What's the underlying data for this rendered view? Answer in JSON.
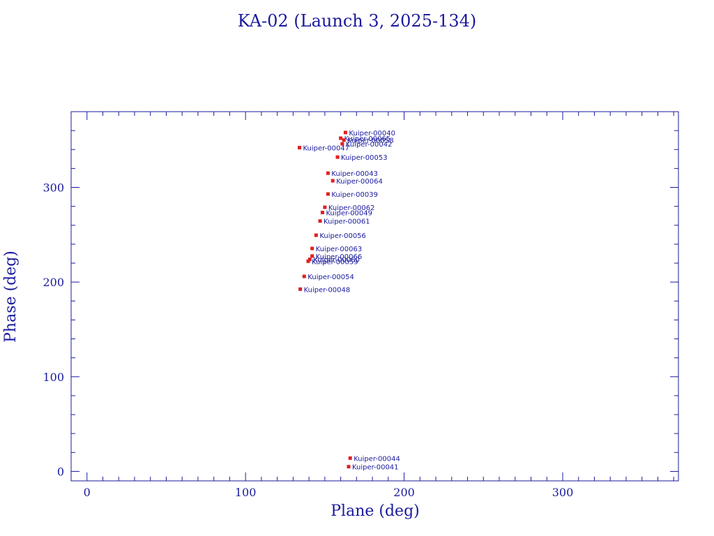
{
  "chart_data": {
    "type": "scatter",
    "title": "KA-02 (Launch 3, 2025-134)",
    "xlabel": "Plane (deg)",
    "ylabel": "Phase (deg)",
    "xlim": [
      -10,
      373
    ],
    "ylim": [
      -10,
      380
    ],
    "x_ticks": [
      0,
      100,
      200,
      300
    ],
    "y_ticks": [
      0,
      100,
      200,
      300
    ],
    "x_minor_step": 10,
    "y_minor_step": 20,
    "grid": false,
    "marker_color": "#e02020",
    "axis_color": "#1a1a9e",
    "points": [
      {
        "label": "Kuiper-00040",
        "x": 163.0,
        "y": 358.0
      },
      {
        "label": "Kuiper-00065",
        "x": 160.0,
        "y": 352.0
      },
      {
        "label": "Kuiper-00058",
        "x": 162.0,
        "y": 350.0
      },
      {
        "label": "Kuiper-00042",
        "x": 161.0,
        "y": 346.0
      },
      {
        "label": "Kuiper-00047",
        "x": 134.0,
        "y": 342.0
      },
      {
        "label": "Kuiper-00053",
        "x": 158.0,
        "y": 332.0
      },
      {
        "label": "Kuiper-00043",
        "x": 152.0,
        "y": 315.0
      },
      {
        "label": "Kuiper-00064",
        "x": 155.0,
        "y": 307.0
      },
      {
        "label": "Kuiper-00039",
        "x": 152.0,
        "y": 293.0
      },
      {
        "label": "Kuiper-00062",
        "x": 150.0,
        "y": 279.0
      },
      {
        "label": "Kuiper-00049",
        "x": 148.5,
        "y": 273.5
      },
      {
        "label": "Kuiper-00061",
        "x": 147.0,
        "y": 264.5
      },
      {
        "label": "Kuiper-00056",
        "x": 144.5,
        "y": 249.5
      },
      {
        "label": "Kuiper-00063",
        "x": 142.0,
        "y": 235.5
      },
      {
        "label": "Kuiper-00066",
        "x": 142.0,
        "y": 227.5
      },
      {
        "label": "Kuiper-00060",
        "x": 140.5,
        "y": 224.0
      },
      {
        "label": "Kuiper-00059",
        "x": 139.5,
        "y": 222.0
      },
      {
        "label": "Kuiper-00054",
        "x": 137.0,
        "y": 206.0
      },
      {
        "label": "Kuiper-00048",
        "x": 134.5,
        "y": 192.5
      },
      {
        "label": "Kuiper-00044",
        "x": 166.0,
        "y": 14.0
      },
      {
        "label": "Kuiper-00041",
        "x": 165.0,
        "y": 5.0
      }
    ]
  }
}
